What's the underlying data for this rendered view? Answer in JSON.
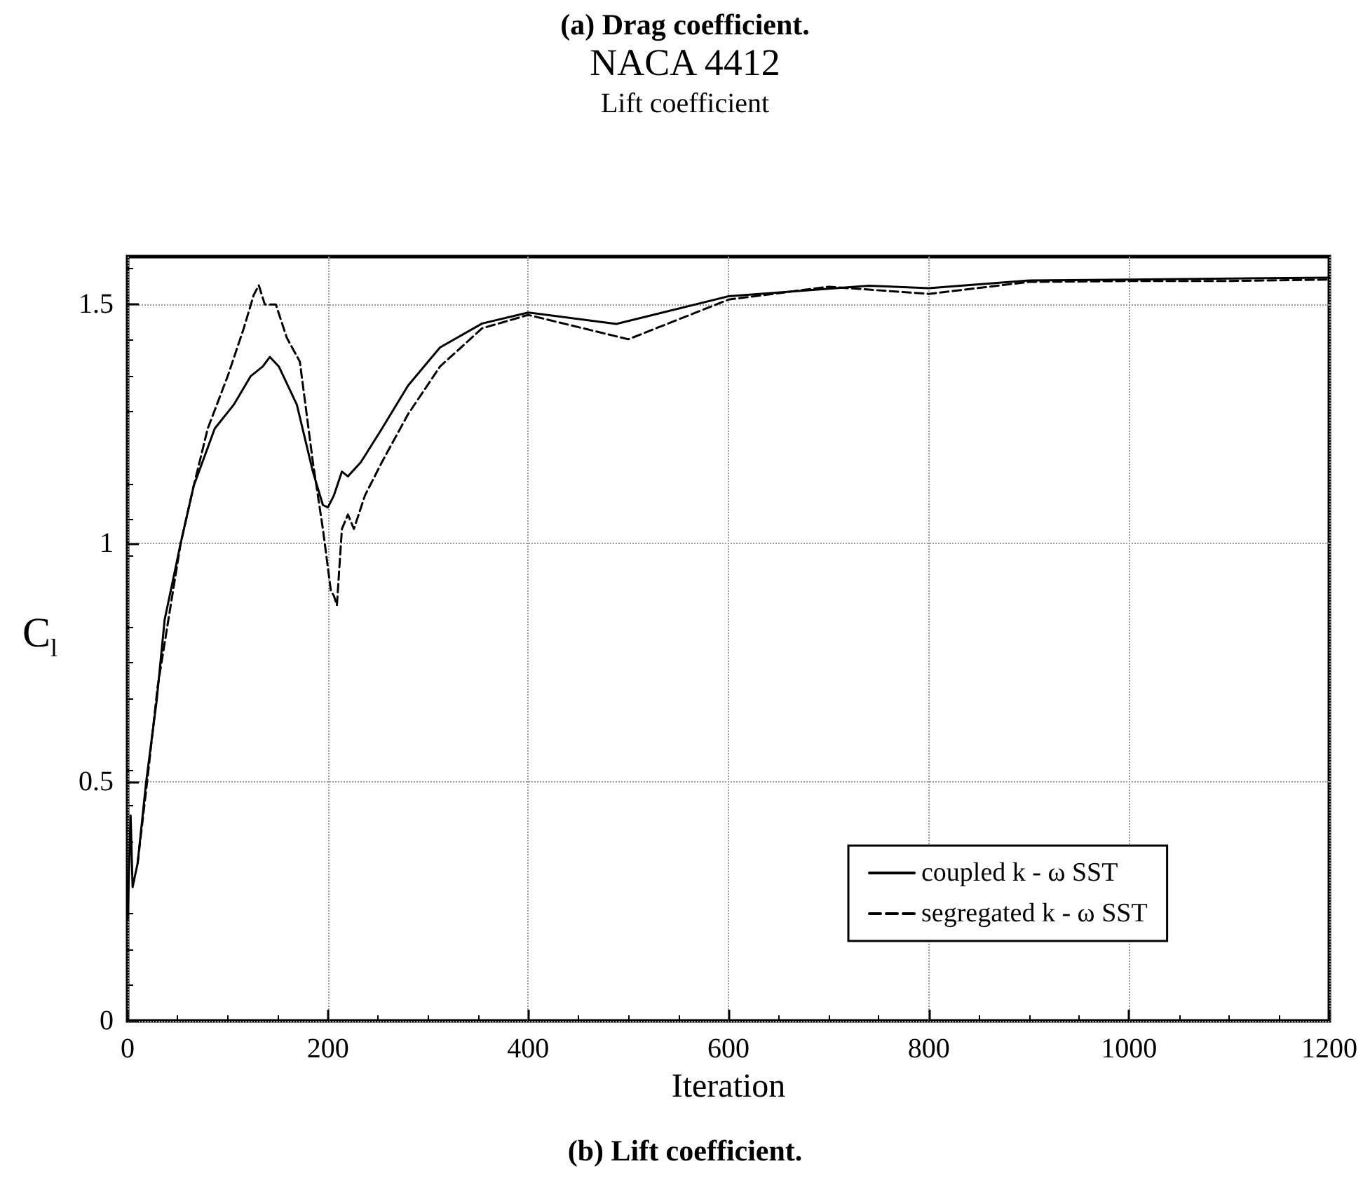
{
  "chart_data": {
    "type": "line",
    "title": "NACA 4412",
    "subtitle": "Lift coefficient",
    "xlabel": "Iteration",
    "ylabel": "C$_{l}$",
    "annotations": [
      "(a) Drag coefficient.",
      "(b) Lift coefficient."
    ],
    "xlim": [
      0,
      1200
    ],
    "xticks": [
      0,
      200,
      400,
      600,
      800,
      1000,
      1200
    ],
    "ylim": [
      0,
      1.6
    ],
    "yticks": [
      0,
      0.5,
      1,
      1.5
    ],
    "grid": true,
    "legend": "bottom right",
    "marker": "none",
    "series": [
      {
        "name": "coupled k - ω SST",
        "color": "#000000",
        "line_style": "solid",
        "x": [
          0,
          3,
          5,
          10,
          18.5,
          29,
          37,
          53,
          66,
          87,
          106,
          123,
          135,
          142,
          151,
          169,
          185,
          195,
          200,
          206,
          214,
          220,
          233,
          254,
          280,
          312,
          354,
          400,
          488,
          600,
          740,
          800,
          900,
          1000,
          1200
        ],
        "values": [
          0.21,
          0.43,
          0.28,
          0.33,
          0.5,
          0.67,
          0.84,
          1.0,
          1.12,
          1.24,
          1.29,
          1.35,
          1.37,
          1.39,
          1.37,
          1.29,
          1.15,
          1.08,
          1.075,
          1.1,
          1.15,
          1.14,
          1.17,
          1.24,
          1.33,
          1.41,
          1.46,
          1.483,
          1.459,
          1.517,
          1.539,
          1.534,
          1.55,
          1.552,
          1.556
        ]
      },
      {
        "name": "segregated k - ω SST",
        "color": "#000000",
        "line_style": "dashed",
        "x": [
          10,
          20,
          30,
          53,
          66,
          80,
          100,
          116,
          126,
          131,
          137,
          148,
          159,
          172,
          185,
          195,
          203,
          206,
          209,
          214,
          220,
          226,
          237,
          254,
          280,
          312,
          354,
          400,
          500,
          600,
          700,
          800,
          900,
          1000,
          1100,
          1200
        ],
        "values": [
          0.33,
          0.51,
          0.7,
          1.0,
          1.12,
          1.24,
          1.35,
          1.45,
          1.52,
          1.54,
          1.5,
          1.5,
          1.43,
          1.38,
          1.17,
          1.03,
          0.9,
          0.89,
          0.87,
          1.03,
          1.06,
          1.03,
          1.1,
          1.17,
          1.27,
          1.37,
          1.45,
          1.478,
          1.427,
          1.51,
          1.537,
          1.522,
          1.547,
          1.549,
          1.549,
          1.552
        ]
      }
    ]
  }
}
